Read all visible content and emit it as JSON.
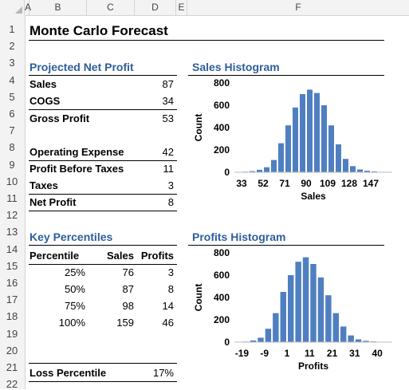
{
  "columns": [
    "A",
    "B",
    "C",
    "D",
    "E",
    "F"
  ],
  "rows": [
    "1",
    "2",
    "3",
    "4",
    "5",
    "6",
    "7",
    "8",
    "9",
    "10",
    "11",
    "12",
    "13",
    "14",
    "15",
    "16",
    "17",
    "18",
    "19",
    "20",
    "21",
    "22"
  ],
  "title": "Monte Carlo Forecast",
  "projected": {
    "heading": "Projected Net Profit",
    "items": [
      {
        "label": "Sales",
        "value": "87"
      },
      {
        "label": "COGS",
        "value": "34"
      },
      {
        "label": "Gross Profit",
        "value": "53"
      },
      {
        "label": "Operating Expense",
        "value": "42"
      },
      {
        "label": "Profit Before Taxes",
        "value": "11"
      },
      {
        "label": "Taxes",
        "value": "3"
      },
      {
        "label": "Net Profit",
        "value": "8"
      }
    ]
  },
  "percentiles": {
    "heading": "Key Percentiles",
    "headers": [
      "Percentile",
      "Sales",
      "Profits"
    ],
    "rows": [
      [
        "25%",
        "76",
        "3"
      ],
      [
        "50%",
        "87",
        "8"
      ],
      [
        "75%",
        "98",
        "14"
      ],
      [
        "100%",
        "159",
        "46"
      ]
    ]
  },
  "loss": {
    "label": "Loss Percentile",
    "value": "17%"
  },
  "colors": {
    "bar": "#4f7fc1",
    "heading": "#2e5e9c"
  },
  "chart_data": [
    {
      "type": "bar",
      "title": "Sales Histogram",
      "xlabel": "Sales",
      "ylabel": "Count",
      "ylim": [
        0,
        800
      ],
      "yticks": [
        "0",
        "200",
        "400",
        "600",
        "800"
      ],
      "xticks": [
        "33",
        "52",
        "71",
        "90",
        "109",
        "128",
        "147"
      ],
      "values": [
        2,
        5,
        10,
        22,
        45,
        110,
        260,
        420,
        580,
        700,
        740,
        710,
        600,
        420,
        250,
        120,
        55,
        25,
        14,
        8,
        4,
        2
      ]
    },
    {
      "type": "bar",
      "title": "Profits Histogram",
      "xlabel": "Profits",
      "ylabel": "Count",
      "ylim": [
        0,
        800
      ],
      "yticks": [
        "0",
        "200",
        "400",
        "600",
        "800"
      ],
      "xticks": [
        "-19",
        "-9",
        "1",
        "11",
        "21",
        "31",
        "40"
      ],
      "values": [
        2,
        5,
        15,
        40,
        120,
        260,
        450,
        600,
        720,
        760,
        700,
        580,
        420,
        260,
        140,
        60,
        25,
        12,
        6,
        3,
        2
      ]
    }
  ]
}
